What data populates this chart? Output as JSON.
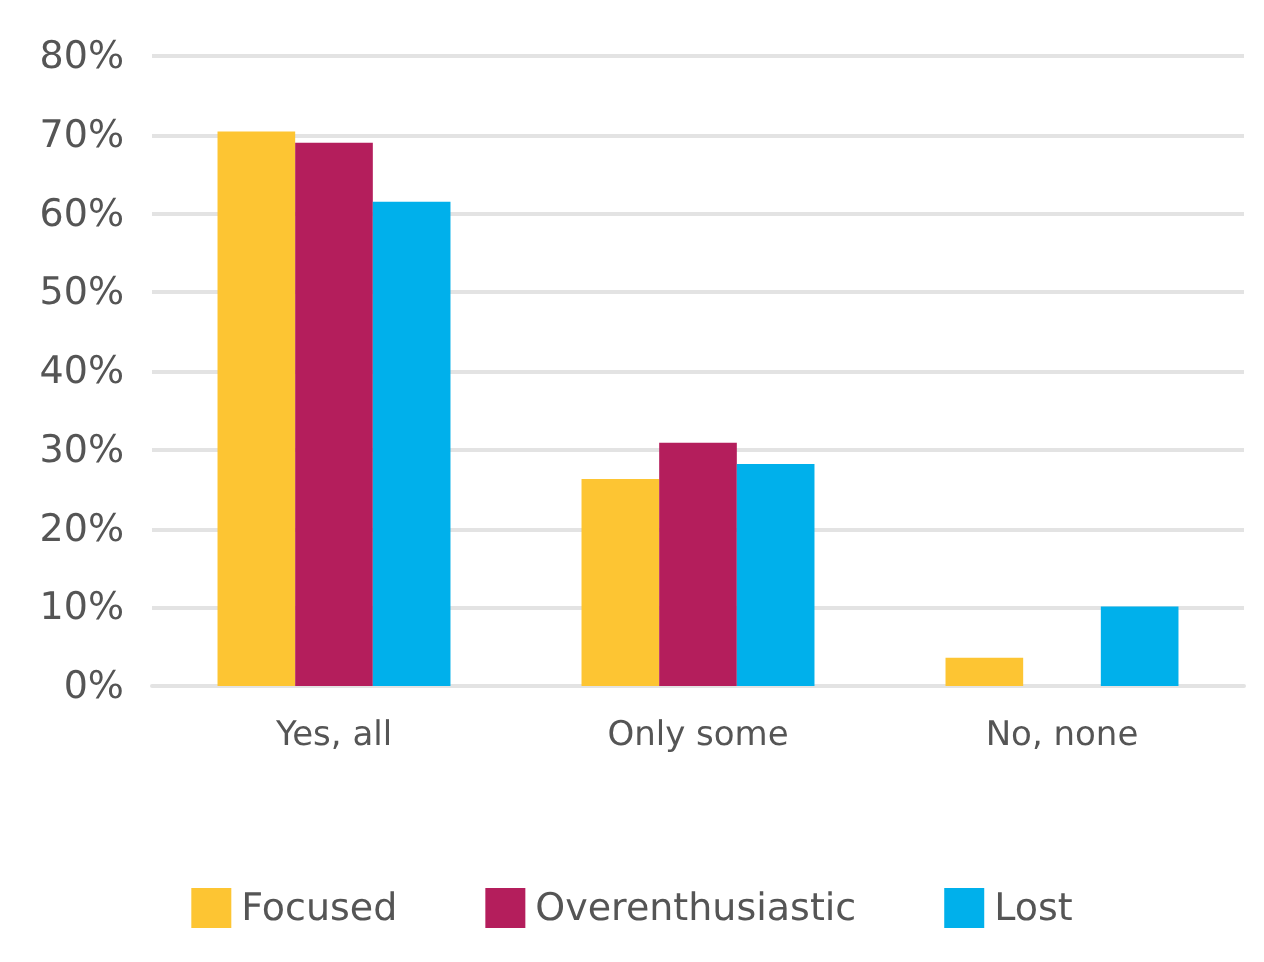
{
  "chart_data": {
    "type": "bar",
    "categories": [
      "Yes, all",
      "Only some",
      "No, none"
    ],
    "series": [
      {
        "name": "Focused",
        "color": "#fdc533",
        "values": [
          70.4,
          26.3,
          3.6
        ]
      },
      {
        "name": "Overenthusiastic",
        "color": "#b41e5c",
        "values": [
          69.0,
          30.9,
          0
        ]
      },
      {
        "name": "Lost",
        "color": "#00b0eb",
        "values": [
          61.5,
          28.2,
          10.1
        ]
      }
    ],
    "ylim": [
      0,
      80
    ],
    "yticks": [
      {
        "value": 0,
        "label": "0%"
      },
      {
        "value": 10,
        "label": "10%"
      },
      {
        "value": 20,
        "label": "20%"
      },
      {
        "value": 30,
        "label": "30%"
      },
      {
        "value": 40,
        "label": "40%"
      },
      {
        "value": 50,
        "label": "50%"
      },
      {
        "value": 60,
        "label": "60%"
      },
      {
        "value": 70,
        "label": "70%"
      },
      {
        "value": 80,
        "label": "80%"
      }
    ],
    "grid": "y",
    "legend": "bottom"
  }
}
